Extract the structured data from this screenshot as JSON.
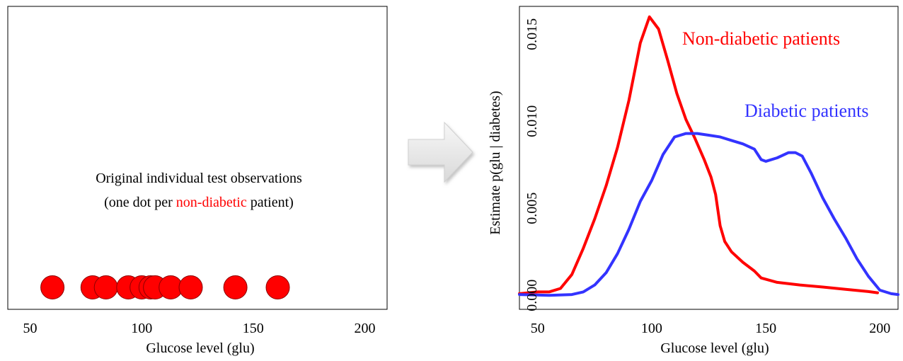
{
  "colors": {
    "non_diabetic": "#ff0000",
    "diabetic": "#3333ff",
    "axis": "#000000",
    "arrow_fill": "#e6e6e6"
  },
  "left_panel": {
    "annotation_line1": "Original individual test observations",
    "annotation_line2_before": "(one dot per ",
    "annotation_line2_highlight": "non-diabetic",
    "annotation_line2_after": " patient)"
  },
  "arrow_icon": "right-arrow-icon",
  "chart_data": [
    {
      "type": "scatter",
      "xlabel": "Glucose level (glu)",
      "ylabel": "",
      "xlim": [
        40,
        210
      ],
      "xticks": [
        "50",
        "100",
        "150",
        "200"
      ],
      "grid": false,
      "series": [
        {
          "color": "#ff0000",
          "x": [
            60,
            78,
            84,
            94,
            100,
            104,
            106,
            113,
            122,
            142,
            161
          ],
          "y": [
            0,
            0,
            0,
            0,
            0,
            0,
            0,
            0,
            0,
            0,
            0
          ]
        }
      ]
    },
    {
      "type": "line",
      "xlabel": "Glucose level (glu)",
      "ylabel": "Estimate  p(glu | diabetes)",
      "xlim": [
        42,
        208
      ],
      "ylim": [
        -0.0008,
        0.0166
      ],
      "xticks": [
        "50",
        "100",
        "150",
        "200"
      ],
      "yticks": [
        "0.000",
        "0.005",
        "0.010",
        "0.015"
      ],
      "grid": false,
      "series": [
        {
          "name": "Non-diabetic patients",
          "color": "#ff0000",
          "x": [
            42,
            50,
            55,
            60,
            65,
            70,
            75,
            80,
            85,
            90,
            95,
            99,
            103,
            107,
            111,
            115,
            119,
            123,
            126,
            128,
            130,
            132,
            135,
            140,
            145,
            148,
            155,
            165,
            175,
            185,
            195,
            199
          ],
          "y": [
            0.0001,
            0.0002,
            0.0002,
            0.0004,
            0.0012,
            0.0027,
            0.0044,
            0.0063,
            0.0085,
            0.0112,
            0.0145,
            0.016,
            0.0153,
            0.0135,
            0.0116,
            0.0101,
            0.009,
            0.0078,
            0.0068,
            0.0058,
            0.004,
            0.0031,
            0.0025,
            0.0019,
            0.0014,
            0.001,
            0.00075,
            0.0006,
            0.00048,
            0.00035,
            0.00022,
            0.00015
          ]
        },
        {
          "name": "Diabetic patients",
          "color": "#3333ff",
          "x": [
            42,
            55,
            65,
            70,
            75,
            80,
            85,
            90,
            95,
            100,
            105,
            110,
            115,
            120,
            125,
            130,
            135,
            140,
            145,
            148,
            150,
            155,
            160,
            163,
            166,
            170,
            175,
            180,
            185,
            190,
            195,
            200,
            205,
            208
          ],
          "y": [
            5e-05,
            0.0,
            5e-05,
            0.0002,
            0.0006,
            0.0013,
            0.0024,
            0.0038,
            0.0054,
            0.0066,
            0.0081,
            0.0091,
            0.0093,
            0.0093,
            0.0092,
            0.0091,
            0.0089,
            0.0087,
            0.0084,
            0.0078,
            0.0077,
            0.0079,
            0.0082,
            0.0082,
            0.008,
            0.007,
            0.0056,
            0.0044,
            0.0033,
            0.0021,
            0.0011,
            0.0003,
            0.0001,
            5e-05
          ]
        }
      ]
    }
  ]
}
